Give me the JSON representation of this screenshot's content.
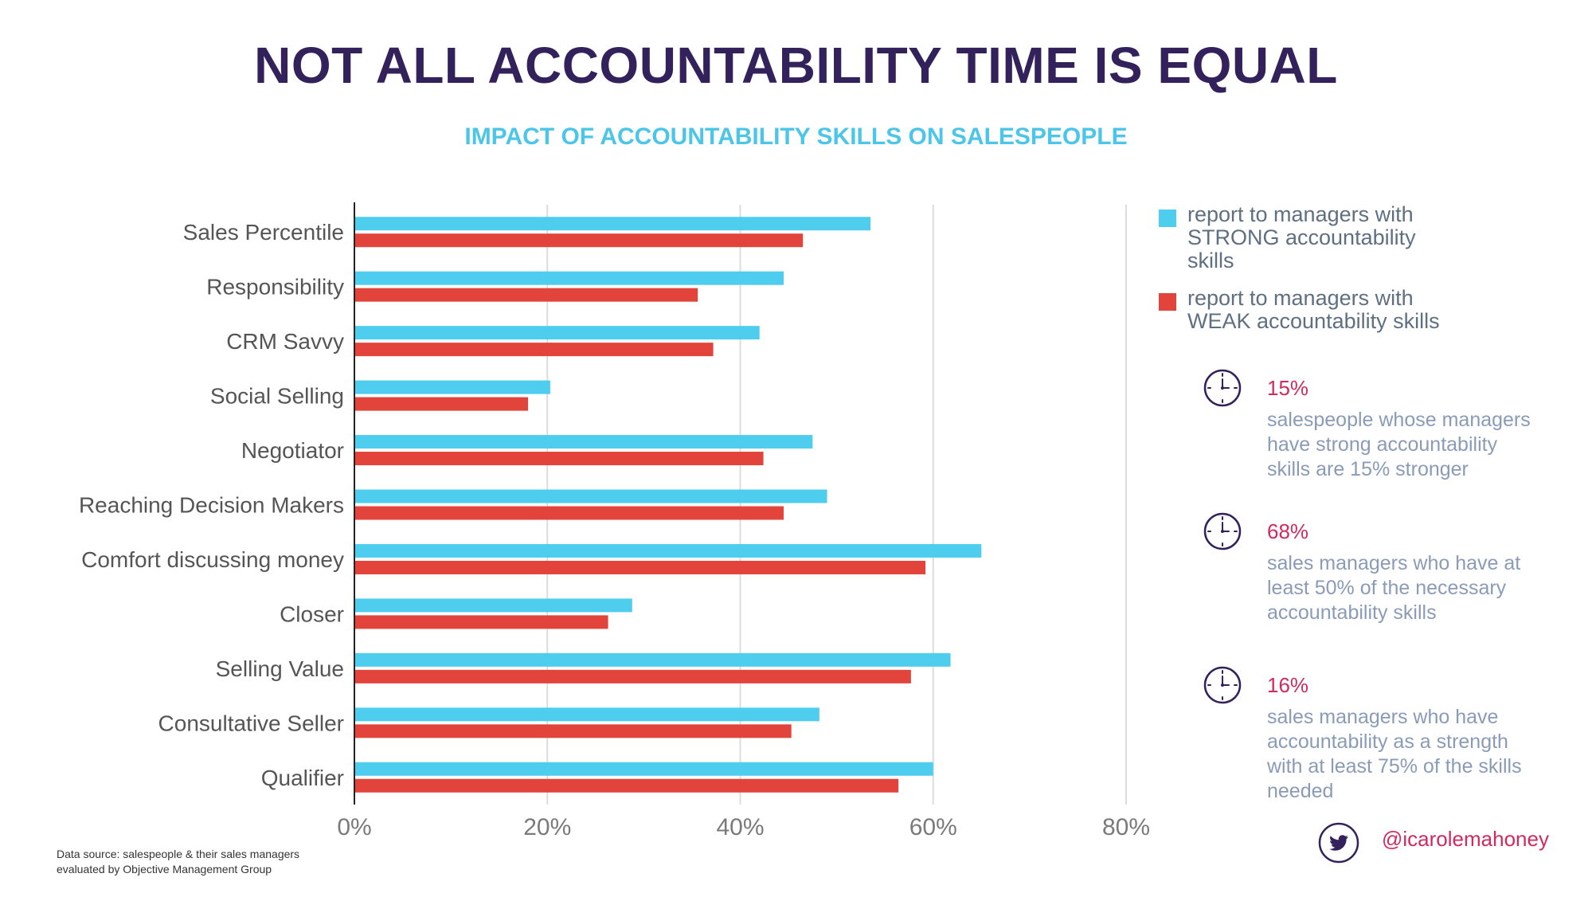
{
  "title": "NOT ALL ACCOUNTABILITY TIME IS EQUAL",
  "subtitle": "IMPACT OF ACCOUNTABILITY SKILLS ON SALESPEOPLE",
  "chart_data": {
    "type": "bar",
    "orientation": "horizontal",
    "categories": [
      "Sales Percentile",
      "Responsibility",
      "CRM Savvy",
      "Social Selling",
      "Negotiator",
      "Reaching Decision Makers",
      "Comfort discussing money",
      "Closer",
      "Selling Value",
      "Consultative Seller",
      "Qualifier"
    ],
    "series": [
      {
        "name": "report to managers with STRONG accountability skills",
        "color": "#4fcdee",
        "values": [
          53.5,
          44.5,
          42,
          20.3,
          47.5,
          49,
          65,
          28.8,
          61.8,
          48.2,
          60
        ]
      },
      {
        "name": "report to managers with WEAK accountability skills",
        "color": "#e2443b",
        "values": [
          46.5,
          35.6,
          37.2,
          18,
          42.4,
          44.5,
          59.2,
          26.3,
          57.7,
          45.3,
          56.4
        ]
      }
    ],
    "xlim": [
      0,
      80
    ],
    "x_ticks": [
      "0%",
      "20%",
      "40%",
      "60%",
      "80%"
    ],
    "grid": true,
    "legend_position": "right"
  },
  "legend": [
    {
      "color": "#4fcdee",
      "lines": [
        "report to managers with",
        "STRONG accountability",
        "skills"
      ]
    },
    {
      "color": "#e2443b",
      "lines": [
        "report to managers with",
        "WEAK accountability skills"
      ]
    }
  ],
  "stats": [
    {
      "icon": "clock-icon",
      "percent": "15%",
      "lines": [
        "salespeople whose managers",
        "have strong accountability",
        "skills are 15% stronger"
      ]
    },
    {
      "icon": "clock-icon",
      "percent": "68%",
      "lines": [
        "sales managers who have at",
        "least 50% of the necessary",
        "accountability skills"
      ]
    },
    {
      "icon": "clock-icon",
      "percent": "16%",
      "lines": [
        "sales managers who have",
        "accountability as a strength",
        "with at least 75% of the skills",
        "needed"
      ]
    }
  ],
  "twitter_handle": "@icarolemahoney",
  "source_lines": [
    "Data source: salespeople & their sales managers",
    "evaluated by Objective Management Group"
  ],
  "colors": {
    "title": "#33215c",
    "subtitle": "#4cc6e8",
    "accent": "#d12a5e",
    "stat_text": "#8a9bb8"
  }
}
